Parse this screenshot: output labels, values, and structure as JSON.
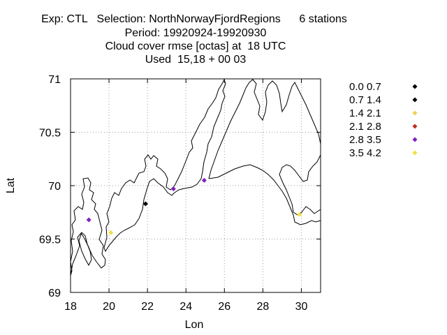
{
  "chart_data": {
    "type": "scatter",
    "title_lines": [
      "Exp: CTL   Selection: NorthNorwayFjordRegions      6 stations",
      "Period: 19920924-19920930",
      "Cloud cover rmse [octas] at  18 UTC",
      "Used  15,18 + 00 03"
    ],
    "xlabel": "Lon",
    "ylabel": "Lat",
    "xlim": [
      18,
      31
    ],
    "ylim": [
      69,
      71
    ],
    "xticks": [
      18,
      20,
      22,
      24,
      26,
      28,
      30
    ],
    "yticks": [
      69,
      69.5,
      70,
      70.5,
      71
    ],
    "ytick_labels": [
      "69",
      "69.5",
      "70",
      "70.5",
      "71"
    ],
    "grid": true,
    "legend_position": "right",
    "legend": [
      {
        "label": "0.0 0.7",
        "color": "#000000"
      },
      {
        "label": "0.7 1.4",
        "color": "#000000"
      },
      {
        "label": "1.4 2.1",
        "color": "#f0d050"
      },
      {
        "label": "2.1 2.8",
        "color": "#c03020"
      },
      {
        "label": "2.8 3.5",
        "color": "#8020c0"
      },
      {
        "label": "3.5 4.2",
        "color": "#f0e040"
      }
    ],
    "points": [
      {
        "lon": 18.95,
        "lat": 69.68,
        "color": "#8020c0"
      },
      {
        "lon": 20.1,
        "lat": 69.56,
        "color": "#f0e040"
      },
      {
        "lon": 21.9,
        "lat": 69.83,
        "color": "#000000"
      },
      {
        "lon": 23.35,
        "lat": 69.97,
        "color": "#8020c0"
      },
      {
        "lon": 24.95,
        "lat": 70.05,
        "color": "#8020c0"
      },
      {
        "lon": 29.9,
        "lat": 69.73,
        "color": "#f0e040"
      }
    ]
  }
}
